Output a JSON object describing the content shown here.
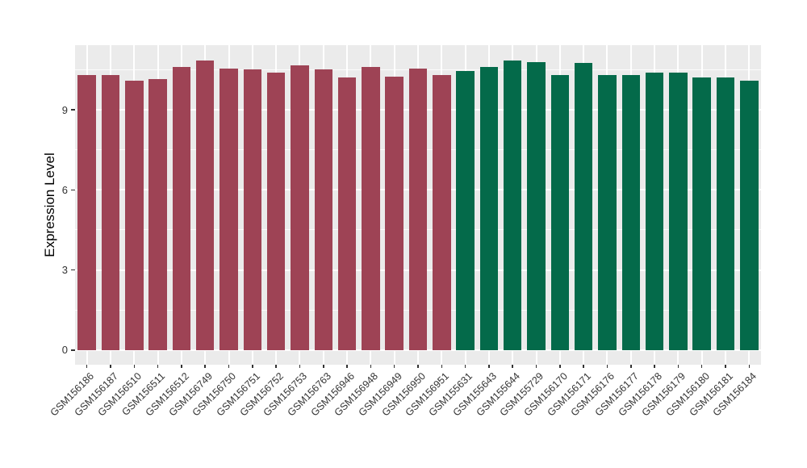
{
  "chart_data": {
    "type": "bar",
    "title": "",
    "xlabel": "",
    "ylabel": "Expression Level",
    "yticks": [
      0,
      3,
      6,
      9
    ],
    "ytick_labels": [
      "0",
      "3",
      "6",
      "9"
    ],
    "minor_yticks": [
      1.5,
      4.5,
      7.5,
      10.5
    ],
    "ylim": [
      -0.55,
      11.42
    ],
    "grid": "white major+minor horizontal gridlines and vertical gridlines at category centers on grey panel",
    "legend_position": "none",
    "categories": [
      "GSM156186",
      "GSM156187",
      "GSM156510",
      "GSM156511",
      "GSM156512",
      "GSM156749",
      "GSM156750",
      "GSM156751",
      "GSM156752",
      "GSM156753",
      "GSM156763",
      "GSM156946",
      "GSM156948",
      "GSM156949",
      "GSM156950",
      "GSM156951",
      "GSM155631",
      "GSM155643",
      "GSM155644",
      "GSM155729",
      "GSM156170",
      "GSM156171",
      "GSM156176",
      "GSM156177",
      "GSM156178",
      "GSM156179",
      "GSM156180",
      "GSM156181",
      "GSM156184"
    ],
    "values": [
      10.3,
      10.3,
      10.1,
      10.15,
      10.6,
      10.85,
      10.55,
      10.5,
      10.4,
      10.65,
      10.5,
      10.2,
      10.6,
      10.25,
      10.55,
      10.3,
      10.45,
      10.6,
      10.85,
      10.8,
      10.3,
      10.75,
      10.3,
      10.3,
      10.4,
      10.4,
      10.2,
      10.2,
      10.1
    ],
    "bar_colors": [
      "#9E4355",
      "#9E4355",
      "#9E4355",
      "#9E4355",
      "#9E4355",
      "#9E4355",
      "#9E4355",
      "#9E4355",
      "#9E4355",
      "#9E4355",
      "#9E4355",
      "#9E4355",
      "#9E4355",
      "#9E4355",
      "#9E4355",
      "#9E4355",
      "#046A4A",
      "#046A4A",
      "#046A4A",
      "#046A4A",
      "#046A4A",
      "#046A4A",
      "#046A4A",
      "#046A4A",
      "#046A4A",
      "#046A4A",
      "#046A4A",
      "#046A4A",
      "#046A4A"
    ],
    "style": {
      "panel_background": "#EBEBEB",
      "gridline_color": "#FFFFFF",
      "axis_text_color": "#333333",
      "axis_title_color": "#000000",
      "group1_color": "#9E4355",
      "group2_color": "#046A4A"
    }
  }
}
